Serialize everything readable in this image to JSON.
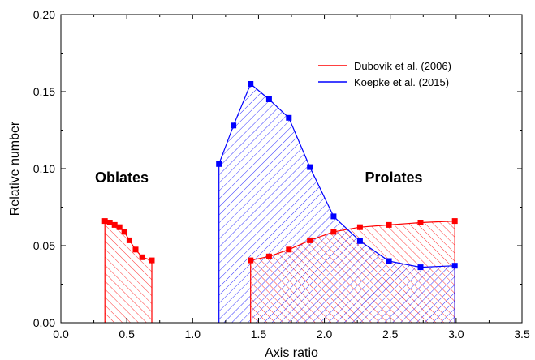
{
  "chart_data": {
    "type": "line",
    "xlabel": "Axis ratio",
    "ylabel": "Relative number",
    "xlim": [
      0.0,
      3.5
    ],
    "ylim": [
      0.0,
      0.2
    ],
    "xticks": [
      "0.0",
      "0.5",
      "1.0",
      "1.5",
      "2.0",
      "2.5",
      "3.0",
      "3.5"
    ],
    "yticks": [
      "0.00",
      "0.05",
      "0.10",
      "0.15",
      "0.20"
    ],
    "grid": false,
    "legend_position": "top-right",
    "annotations": [
      {
        "text": "Oblates",
        "x": 0.45,
        "y": 0.092
      },
      {
        "text": "Prolates",
        "x": 2.55,
        "y": 0.092
      }
    ],
    "series": [
      {
        "name": "Dubovik et al. (2006)",
        "color": "#ff0000",
        "hatch": "forward",
        "segments": [
          {
            "x": [
              0.334,
              0.371,
              0.408,
              0.445,
              0.482,
              0.52,
              0.567,
              0.617,
              0.69
            ],
            "y": [
              0.066,
              0.065,
              0.0635,
              0.062,
              0.059,
              0.0535,
              0.0475,
              0.0425,
              0.0405
            ]
          },
          {
            "x": [
              1.44,
              1.58,
              1.73,
              1.89,
              2.07,
              2.27,
              2.49,
              2.73,
              2.99
            ],
            "y": [
              0.0405,
              0.043,
              0.0475,
              0.0535,
              0.059,
              0.062,
              0.0635,
              0.065,
              0.066
            ]
          }
        ]
      },
      {
        "name": "Koepke et al. (2015)",
        "color": "#0000ff",
        "hatch": "back",
        "segments": [
          {
            "x": [
              1.2,
              1.31,
              1.44,
              1.58,
              1.73,
              1.89,
              2.07,
              2.27,
              2.49,
              2.73,
              2.99
            ],
            "y": [
              0.103,
              0.128,
              0.155,
              0.145,
              0.133,
              0.101,
              0.069,
              0.053,
              0.04,
              0.036,
              0.037
            ]
          }
        ]
      }
    ]
  }
}
